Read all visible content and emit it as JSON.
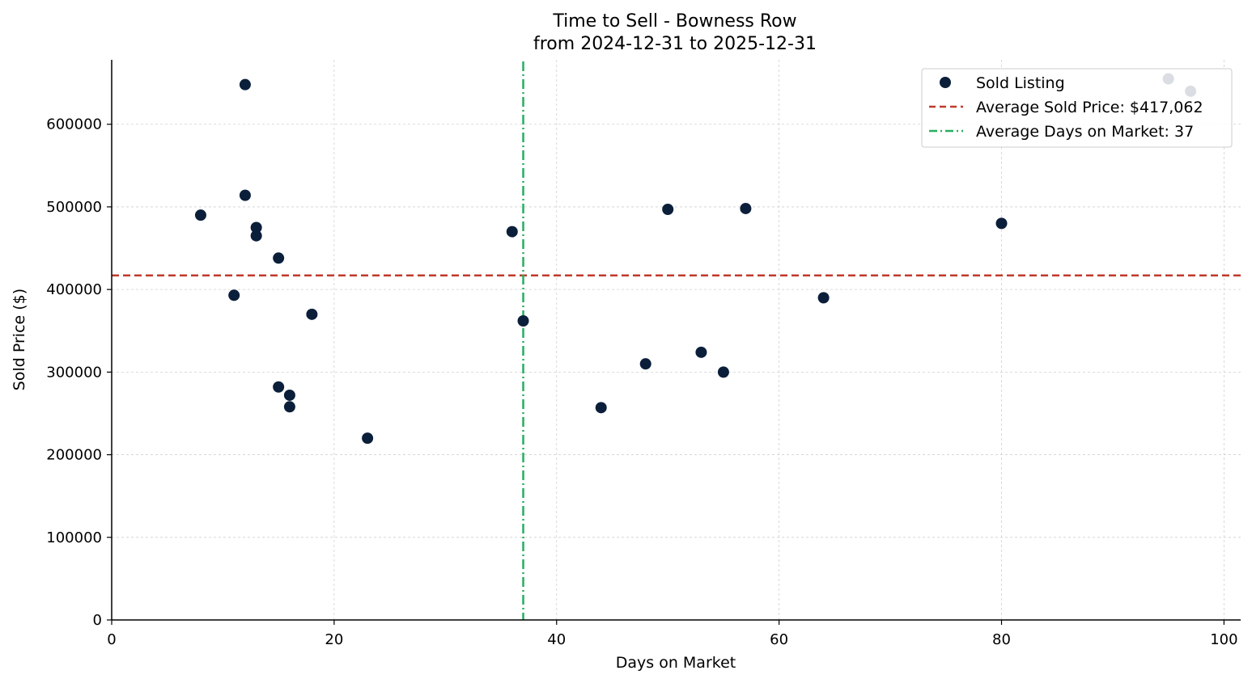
{
  "chart_data": {
    "type": "scatter",
    "title": "Time to Sell - Bowness Row",
    "subtitle": "from 2024-12-31 to 2025-12-31",
    "xlabel": "Days on Market",
    "ylabel": "Sold Price ($)",
    "xlim": [
      0,
      101.5
    ],
    "ylim": [
      0,
      678000
    ],
    "xticks": [
      0,
      20,
      40,
      60,
      80,
      100
    ],
    "yticks": [
      0,
      100000,
      200000,
      300000,
      400000,
      500000,
      600000
    ],
    "grid": true,
    "legend_position": "top-right",
    "colors": {
      "points": "#0b1f3a",
      "avg_price_line": "#c0392b",
      "avg_days_line": "#27ae60",
      "grid": "#d0d0d0"
    },
    "series": [
      {
        "name": "Sold Listing",
        "points": [
          {
            "x": 8,
            "y": 490000
          },
          {
            "x": 11,
            "y": 393000
          },
          {
            "x": 12,
            "y": 648000
          },
          {
            "x": 12,
            "y": 514000
          },
          {
            "x": 13,
            "y": 475000
          },
          {
            "x": 13,
            "y": 465000
          },
          {
            "x": 15,
            "y": 438000
          },
          {
            "x": 15,
            "y": 282000
          },
          {
            "x": 16,
            "y": 272000
          },
          {
            "x": 16,
            "y": 258000
          },
          {
            "x": 18,
            "y": 370000
          },
          {
            "x": 23,
            "y": 220000
          },
          {
            "x": 36,
            "y": 470000
          },
          {
            "x": 37,
            "y": 362000
          },
          {
            "x": 44,
            "y": 257000
          },
          {
            "x": 48,
            "y": 310000
          },
          {
            "x": 50,
            "y": 497000
          },
          {
            "x": 53,
            "y": 324000
          },
          {
            "x": 55,
            "y": 300000
          },
          {
            "x": 57,
            "y": 498000
          },
          {
            "x": 64,
            "y": 390000
          },
          {
            "x": 80,
            "y": 480000
          },
          {
            "x": 95,
            "y": 655000
          },
          {
            "x": 97,
            "y": 640000
          }
        ]
      }
    ],
    "reference_lines": [
      {
        "name": "Average Sold Price: $417,062",
        "orientation": "horizontal",
        "value": 417062,
        "style": "dashed"
      },
      {
        "name": "Average Days on Market: 37",
        "orientation": "vertical",
        "value": 37,
        "style": "dashdot"
      }
    ]
  }
}
